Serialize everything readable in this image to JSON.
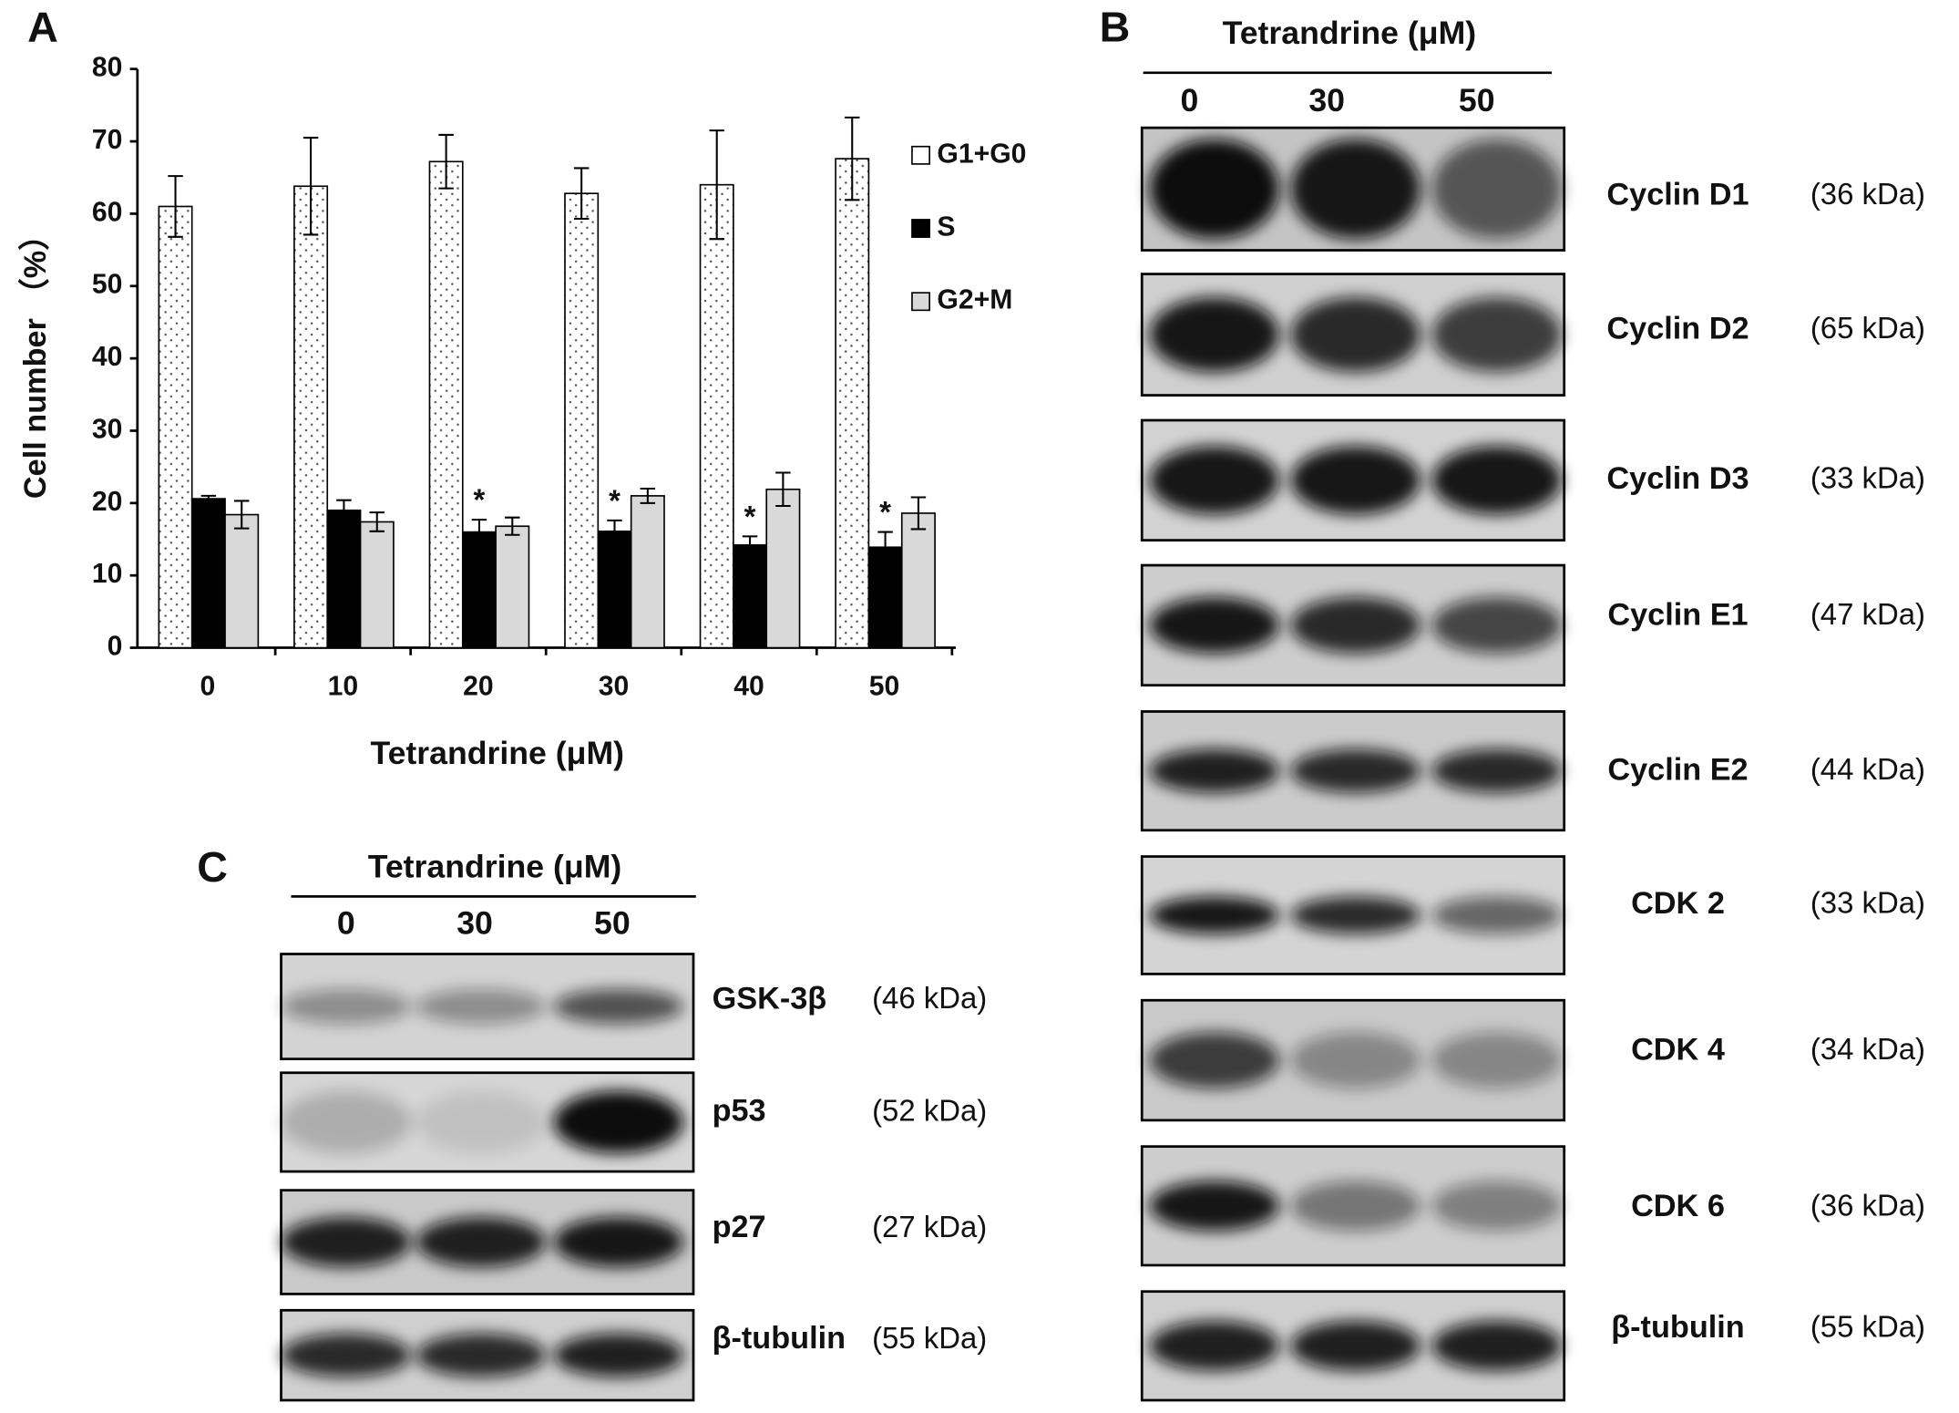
{
  "chart_data": {
    "type": "bar",
    "panel_label": "A",
    "ylabel": "Cell number （%）",
    "xlabel": "Tetrandrine (μM)",
    "categories": [
      "0",
      "10",
      "20",
      "30",
      "40",
      "50"
    ],
    "series": [
      {
        "name": "G1+G0",
        "color": "#ffffff",
        "pattern": "dotted",
        "values": [
          61,
          63.8,
          67.2,
          62.8,
          64,
          67.6
        ],
        "errors": [
          4.2,
          6.7,
          3.7,
          3.5,
          7.5,
          5.7
        ]
      },
      {
        "name": "S",
        "color": "#000000",
        "values": [
          20.6,
          19,
          16,
          16.1,
          14.2,
          13.9
        ],
        "errors": [
          0.4,
          1.4,
          1.7,
          1.5,
          1.2,
          2.1
        ],
        "annotations": [
          null,
          null,
          "*",
          "*",
          "*",
          "*"
        ]
      },
      {
        "name": "G2+M",
        "color": "#d9d9d9",
        "values": [
          18.4,
          17.4,
          16.8,
          21,
          21.9,
          18.6
        ],
        "errors": [
          1.9,
          1.3,
          1.2,
          1.0,
          2.3,
          2.2
        ]
      }
    ],
    "ylim": [
      0,
      80
    ],
    "yticks": [
      0,
      10,
      20,
      30,
      40,
      50,
      60,
      70,
      80
    ],
    "grid": false,
    "legend": "right"
  },
  "panel_b": {
    "label": "B",
    "header": "Tetrandrine (μM)",
    "lanes": [
      0,
      30,
      50
    ],
    "rows": [
      {
        "protein": "Cyclin D1",
        "size": "(36 kDa)"
      },
      {
        "protein": "Cyclin D2",
        "size": "(65 kDa)"
      },
      {
        "protein": "Cyclin D3",
        "size": "(33 kDa)"
      },
      {
        "protein": "Cyclin E1",
        "size": "(47 kDa)"
      },
      {
        "protein": "Cyclin E2",
        "size": "(44 kDa)"
      },
      {
        "protein": "CDK 2",
        "size": "(33 kDa)"
      },
      {
        "protein": "CDK 4",
        "size": "(34 kDa)"
      },
      {
        "protein": "CDK 6",
        "size": "(36 kDa)"
      },
      {
        "protein": "β-tubulin",
        "size": "(55 kDa)"
      }
    ]
  },
  "panel_c": {
    "label": "C",
    "header": "Tetrandrine (μM)",
    "lanes": [
      0,
      30,
      50
    ],
    "rows": [
      {
        "protein": "GSK-3β",
        "size": "(46 kDa)"
      },
      {
        "protein": "p53",
        "size": "(52 kDa)"
      },
      {
        "protein": "p27",
        "size": "(27 kDa)"
      },
      {
        "protein": "β-tubulin",
        "size": "(55 kDa)"
      }
    ]
  }
}
